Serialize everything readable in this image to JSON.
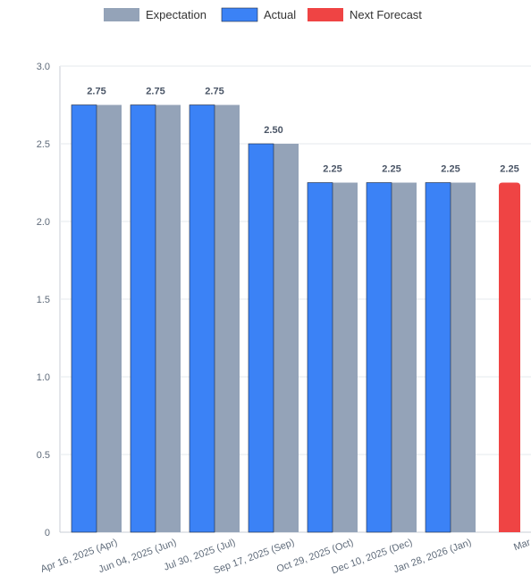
{
  "legend": {
    "expectation": "Expectation",
    "actual": "Actual",
    "forecast": "Next Forecast"
  },
  "colors": {
    "expectation": "#94a3b8",
    "actual": "#3b82f6",
    "forecast": "#ef4444",
    "grid": "#e6e9ee",
    "axis": "#c9ced6"
  },
  "chart_data": {
    "type": "bar",
    "categories": [
      "Apr 16, 2025 (Apr)",
      "Jun 04, 2025 (Jun)",
      "Jul 30, 2025 (Jul)",
      "Sep 17, 2025 (Sep)",
      "Oct 29, 2025 (Oct)",
      "Dec 10, 2025 (Dec)",
      "Jan 28, 2026 (Jan)",
      "Mar"
    ],
    "series": [
      {
        "name": "Expectation",
        "values": [
          2.75,
          2.75,
          2.75,
          2.5,
          2.25,
          2.25,
          2.25,
          null
        ]
      },
      {
        "name": "Actual",
        "values": [
          2.75,
          2.75,
          2.75,
          2.5,
          2.25,
          2.25,
          2.25,
          null
        ]
      },
      {
        "name": "Next Forecast",
        "values": [
          null,
          null,
          null,
          null,
          null,
          null,
          null,
          2.25
        ]
      }
    ],
    "data_labels": [
      "2.75",
      "2.75",
      "2.75",
      "2.50",
      "2.25",
      "2.25",
      "2.25",
      "2.25"
    ],
    "y_ticks": [
      "0",
      "0.5",
      "1.0",
      "1.5",
      "2.0",
      "2.5",
      "3.0"
    ],
    "ylim": [
      0,
      3.0
    ],
    "title": "",
    "xlabel": "",
    "ylabel": "",
    "grid": true,
    "legend_position": "top-center"
  }
}
